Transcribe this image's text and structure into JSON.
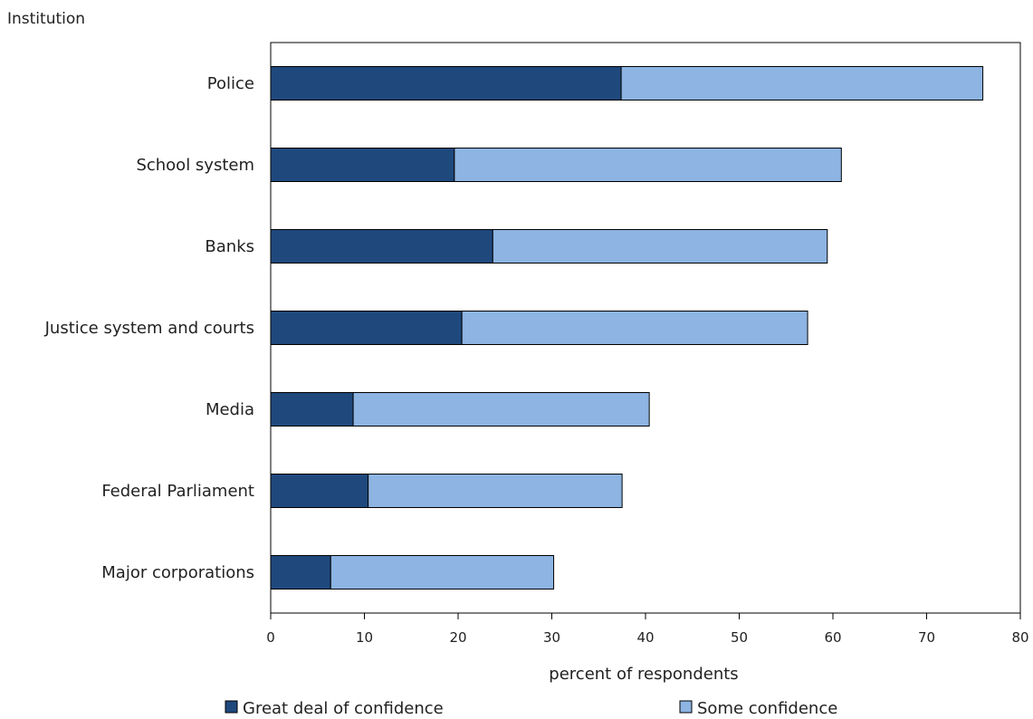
{
  "chart_data": {
    "type": "bar",
    "orientation": "horizontal",
    "stacked": true,
    "title": "",
    "ylabel": "Institution",
    "xlabel": "percent of respondents",
    "categories": [
      "Police",
      "School system",
      "Banks",
      "Justice system and courts",
      "Media",
      "Federal Parliament",
      "Major corporations"
    ],
    "series": [
      {
        "name": "Great deal of confidence",
        "color": "#1f497d",
        "values": [
          37.4,
          19.6,
          23.7,
          20.4,
          8.8,
          10.4,
          6.4
        ]
      },
      {
        "name": "Some confidence",
        "color": "#8db4e2",
        "values": [
          38.6,
          41.3,
          35.7,
          36.9,
          31.6,
          27.1,
          23.8
        ]
      }
    ],
    "xlim": [
      0,
      80
    ],
    "xticks": [
      0,
      10,
      20,
      30,
      40,
      50,
      60,
      70,
      80
    ],
    "grid": false,
    "legend": "bottom"
  }
}
